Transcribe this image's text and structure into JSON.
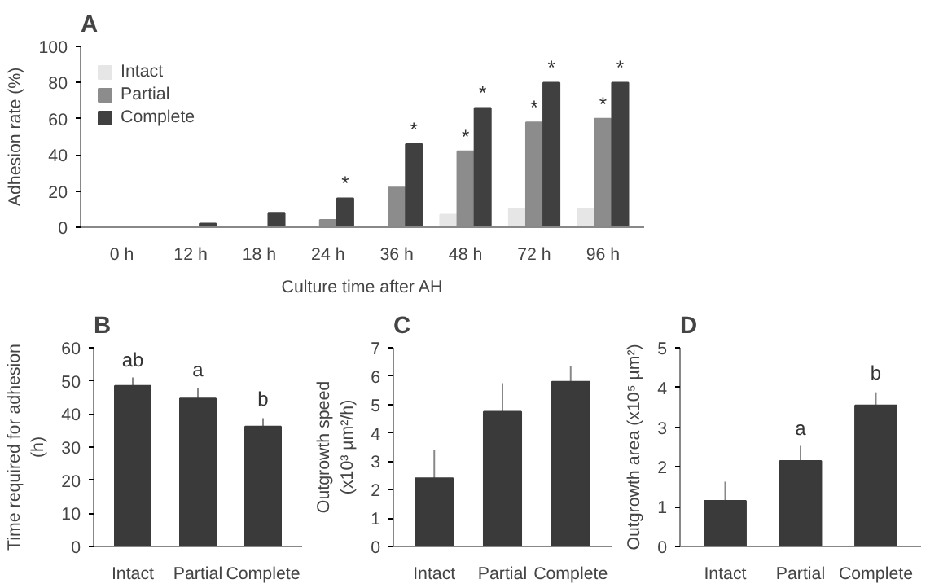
{
  "chart_data": [
    {
      "type": "bar",
      "title": "A",
      "categories": [
        "0 h",
        "12 h",
        "18 h",
        "24 h",
        "36 h",
        "48 h",
        "72 h",
        "96 h"
      ],
      "xlabel": "Culture time after AH",
      "ylabel": "Adhesion rate (%)",
      "ylim": [
        0,
        100
      ],
      "yticks": [
        0,
        20,
        40,
        60,
        80,
        100
      ],
      "grid": false,
      "legend": "top left",
      "series": [
        {
          "name": "Intact",
          "color": "#e6e6e6",
          "values": [
            0,
            0,
            0,
            0,
            0,
            7,
            10,
            10
          ]
        },
        {
          "name": "Partial",
          "color": "#8c8c8c",
          "values": [
            0,
            0,
            0,
            4,
            22,
            42,
            58,
            60
          ],
          "value_labels": [
            null,
            null,
            null,
            null,
            null,
            "*",
            "*",
            "*"
          ]
        },
        {
          "name": "Complete",
          "color": "#404040",
          "values": [
            0,
            2,
            8,
            16,
            46,
            66,
            80,
            80
          ],
          "value_labels": [
            null,
            null,
            null,
            "*",
            "*",
            "*",
            "*",
            "*"
          ]
        }
      ]
    },
    {
      "type": "bar",
      "title": "B",
      "categories": [
        "Intact",
        "Partial",
        "Complete"
      ],
      "ylabel": "Time required for adhesion\n(h)",
      "ylim": [
        0,
        60
      ],
      "yticks": [
        0,
        10,
        20,
        30,
        40,
        50,
        60
      ],
      "grid": false,
      "values": [
        48.5,
        44.7,
        36.2
      ],
      "errors": [
        2.5,
        3,
        2.5
      ],
      "color": "#3a3a3a",
      "annotations": [
        {
          "text": "ab",
          "x": "Intact",
          "y": 52
        },
        {
          "text": "a",
          "x": "Partial",
          "y": 49
        },
        {
          "text": "b",
          "x": "Complete",
          "y": 40
        }
      ]
    },
    {
      "type": "bar",
      "title": "C",
      "categories": [
        "Intact",
        "Partial",
        "Complete"
      ],
      "ylabel": "Outgrowth speed\n(x10³ µm²/h)",
      "ylim": [
        0,
        7
      ],
      "yticks": [
        0,
        1,
        2,
        3,
        4,
        5,
        6,
        7
      ],
      "grid": false,
      "values": [
        2.4,
        4.75,
        5.8
      ],
      "errors": [
        1.0,
        1.0,
        0.55
      ],
      "color": "#3a3a3a"
    },
    {
      "type": "bar",
      "title": "D",
      "categories": [
        "Intact",
        "Partial",
        "Complete"
      ],
      "ylabel": "Outgrowth area (x10⁵ µm²)",
      "ylim": [
        0,
        5
      ],
      "yticks": [
        0,
        1,
        2,
        3,
        4,
        5
      ],
      "grid": false,
      "values": [
        1.15,
        2.15,
        3.55
      ],
      "errors": [
        0.48,
        0.38,
        0.33
      ],
      "color": "#3a3a3a",
      "annotations": [
        {
          "text": "a",
          "x": "Partial",
          "y": 2.6
        },
        {
          "text": "b",
          "x": "Complete",
          "y": 4.0
        }
      ]
    }
  ]
}
